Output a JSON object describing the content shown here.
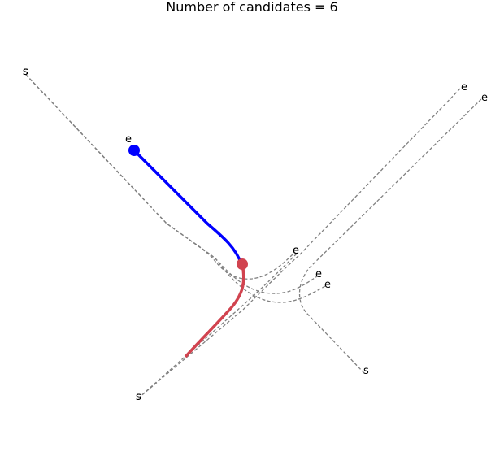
{
  "title": "Number of candidates = 6",
  "colors": {
    "candidate": "#808080",
    "history": "#0000ff",
    "future": "#d1434f",
    "background": "#ffffff"
  },
  "candidates": [
    {
      "start_label": "s",
      "end_label": "e"
    },
    {
      "start_label": "s",
      "end_label": "e"
    },
    {
      "start_label": "s",
      "end_label": "e"
    },
    {
      "start_label": "s",
      "end_label": "e"
    },
    {
      "start_label": "s",
      "end_label": "e"
    },
    {
      "start_label": "s",
      "end_label": "e"
    }
  ],
  "history_path": {
    "end_label": "e"
  }
}
